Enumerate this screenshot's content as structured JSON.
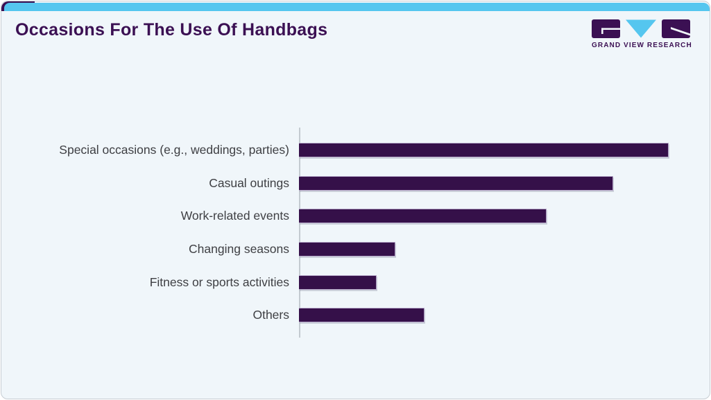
{
  "header": {
    "title": "Occasions For The Use Of Handbags",
    "logo": {
      "text": "GRAND VIEW RESEARCH"
    }
  },
  "colors": {
    "accent_cyan": "#55c6ef",
    "bar_purple": "#351049",
    "title_purple": "#3b1053",
    "label_gray": "#3e3f43",
    "card_background": "#f0f6fa",
    "axis_gray": "#c3cad0"
  },
  "chart_data": {
    "type": "bar",
    "orientation": "horizontal",
    "title": "Occasions For The Use Of Handbags",
    "categories": [
      "Special occasions (e.g., weddings, parties)",
      "Casual outings",
      "Work-related events",
      "Changing seasons",
      "Fitness or sports activities",
      "Others"
    ],
    "values": [
      100,
      85,
      67,
      26,
      21,
      34
    ],
    "xlabel": "",
    "ylabel": "",
    "xlim": [
      0,
      108
    ],
    "grid": false,
    "axis_tick_labels_shown": false,
    "data_labels_shown": false,
    "legend": "none"
  }
}
